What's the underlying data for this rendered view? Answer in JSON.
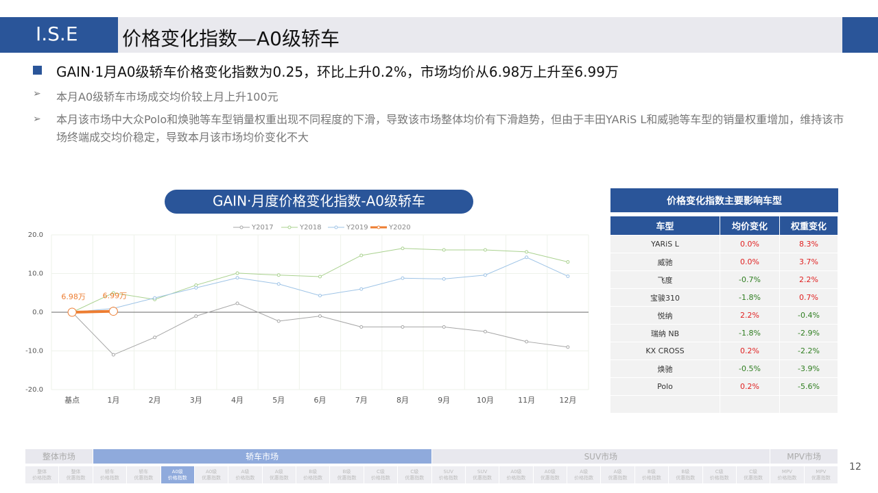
{
  "header": {
    "logo": "I.S.E",
    "title": "价格变化指数—A0级轿车"
  },
  "bullets": {
    "main": "GAIN·1月A0级轿车价格变化指数为0.25，环比上升0.2%，市场均价从6.98万上升至6.99万",
    "subs": [
      "本月A0级轿车市场成交均价较上月上升100元",
      "本月该市场中大众Polo和焕驰等车型销量权重出现不同程度的下滑，导致该市场整体均价有下滑趋势，但由于丰田YARiS L和威驰等车型的销量权重增加，维持该市场终端成交均价稳定，导致本月该市场均价变化不大"
    ]
  },
  "chart_data": {
    "type": "line",
    "title": "GAIN·月度价格变化指数-A0级轿车",
    "categories": [
      "基点",
      "1月",
      "2月",
      "3月",
      "4月",
      "5月",
      "6月",
      "7月",
      "8月",
      "9月",
      "10月",
      "11月",
      "12月"
    ],
    "series": [
      {
        "name": "Y2017",
        "color": "#a6a6a6",
        "values": [
          0,
          -11,
          -6.5,
          -1,
          2.3,
          -2.3,
          -1,
          -3.8,
          -3.8,
          -3.8,
          -5,
          -7.6,
          -9
        ]
      },
      {
        "name": "Y2018",
        "color": "#a9d18e",
        "values": [
          0,
          5,
          3.3,
          7,
          10.1,
          9.6,
          9.2,
          14.7,
          16.5,
          16.1,
          16.1,
          15.6,
          13
        ]
      },
      {
        "name": "Y2019",
        "color": "#9dc3e6",
        "values": [
          0,
          1,
          3.7,
          6.3,
          8.9,
          7.3,
          4.3,
          6,
          8.8,
          8.6,
          9.6,
          14.2,
          9.3
        ]
      },
      {
        "name": "Y2020",
        "color": "#ed7d31",
        "values": [
          0,
          0.25,
          null,
          null,
          null,
          null,
          null,
          null,
          null,
          null,
          null,
          null,
          null
        ]
      }
    ],
    "annotations": [
      "6.98万",
      "6.99万"
    ],
    "ylim": [
      -20,
      20
    ],
    "yticks": [
      {
        "value": -20,
        "label": "-20.0"
      },
      {
        "value": -10,
        "label": "-10.0"
      },
      {
        "value": 0,
        "label": "0.0"
      },
      {
        "value": 10,
        "label": "10.0"
      },
      {
        "value": 20,
        "label": "20.0"
      }
    ],
    "grid": true,
    "legend": "top"
  },
  "table": {
    "title": "价格变化指数主要影响车型",
    "columns": [
      "车型",
      "均价变化",
      "权重变化"
    ],
    "rows": [
      [
        "YARiS L",
        "0.0%",
        "8.3%"
      ],
      [
        "威驰",
        "0.0%",
        "3.7%"
      ],
      [
        "飞度",
        "-0.7%",
        "2.2%"
      ],
      [
        "宝骏310",
        "-1.8%",
        "0.7%"
      ],
      [
        "悦纳",
        "2.2%",
        "-0.4%"
      ],
      [
        "瑞纳 NB",
        "-1.8%",
        "-2.9%"
      ],
      [
        "KX CROSS",
        "0.2%",
        "-2.2%"
      ],
      [
        "焕驰",
        "-0.5%",
        "-3.9%"
      ],
      [
        "Polo",
        "0.2%",
        "-5.6%"
      ]
    ]
  },
  "nav": {
    "groups": [
      "整体市场",
      "轿车市场",
      "SUV市场",
      "MPV市场"
    ],
    "items": [
      [
        "整体",
        "价格指数"
      ],
      [
        "整体",
        "优惠指数"
      ],
      [
        "轿车",
        "价格指数"
      ],
      [
        "轿车",
        "优惠指数"
      ],
      [
        "A0级",
        "价格指数"
      ],
      [
        "A0级",
        "优惠指数"
      ],
      [
        "A级",
        "价格指数"
      ],
      [
        "A级",
        "优惠指数"
      ],
      [
        "B级",
        "价格指数"
      ],
      [
        "B级",
        "优惠指数"
      ],
      [
        "C级",
        "价格指数"
      ],
      [
        "C级",
        "优惠指数"
      ],
      [
        "SUV",
        "价格指数"
      ],
      [
        "SUV",
        "优惠指数"
      ],
      [
        "A0级",
        "价格指数"
      ],
      [
        "A0级",
        "优惠指数"
      ],
      [
        "A级",
        "价格指数"
      ],
      [
        "A级",
        "优惠指数"
      ],
      [
        "B级",
        "价格指数"
      ],
      [
        "B级",
        "优惠指数"
      ],
      [
        "C级",
        "价格指数"
      ],
      [
        "C级",
        "优惠指数"
      ],
      [
        "MPV",
        "价格指数"
      ],
      [
        "MPV",
        "优惠指数"
      ]
    ]
  },
  "page_number": "12"
}
